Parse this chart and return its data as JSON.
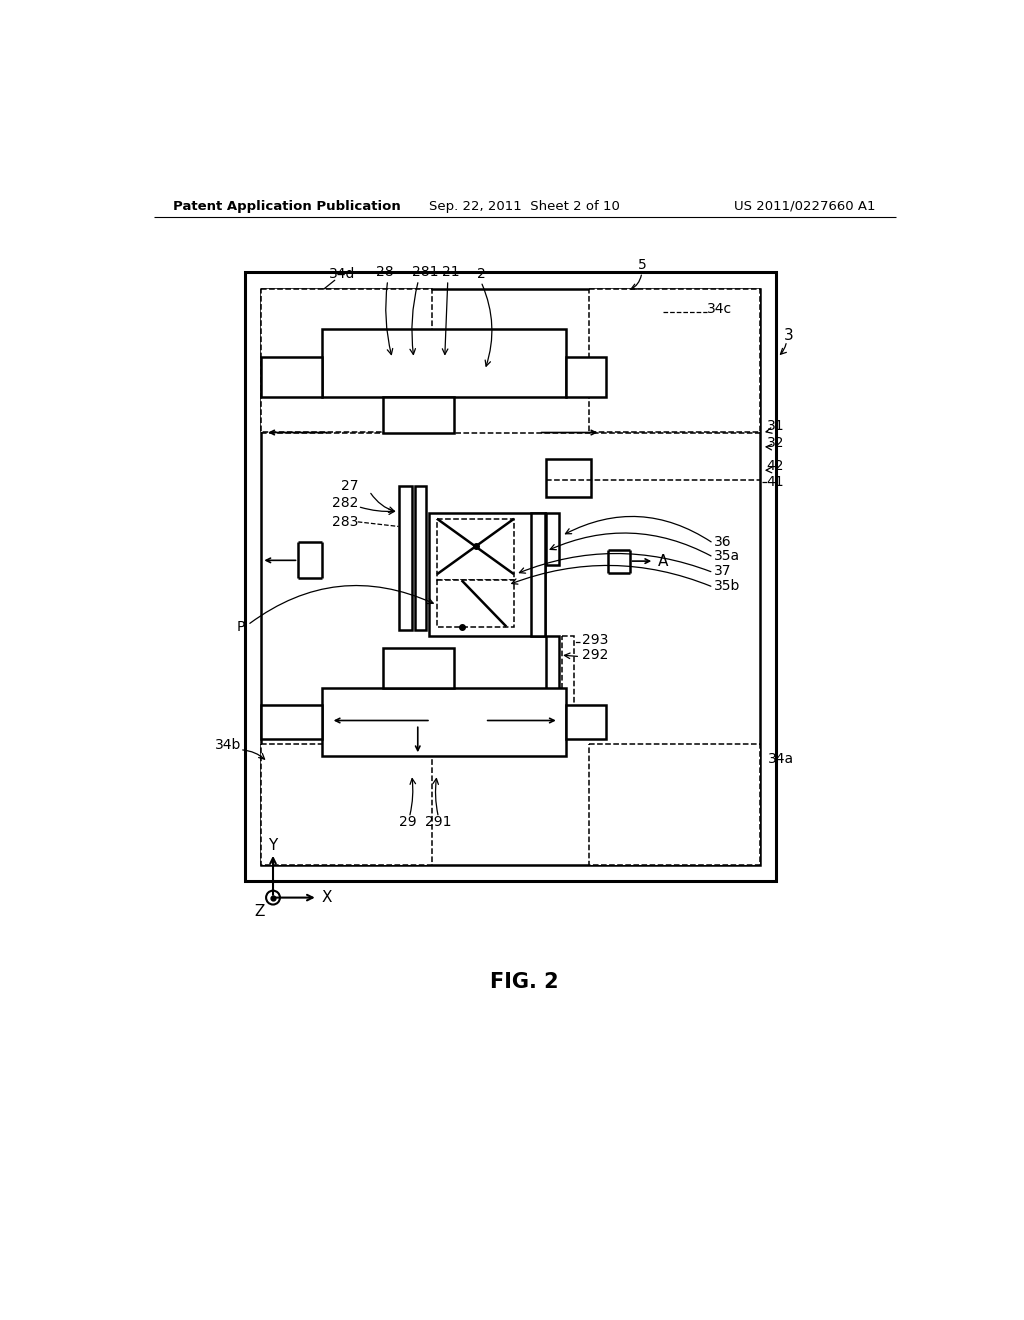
{
  "title_left": "Patent Application Publication",
  "title_center": "Sep. 22, 2011  Sheet 2 of 10",
  "title_right": "US 2011/0227660 A1",
  "fig_label": "FIG. 2",
  "background": "#ffffff",
  "line_color": "#000000"
}
